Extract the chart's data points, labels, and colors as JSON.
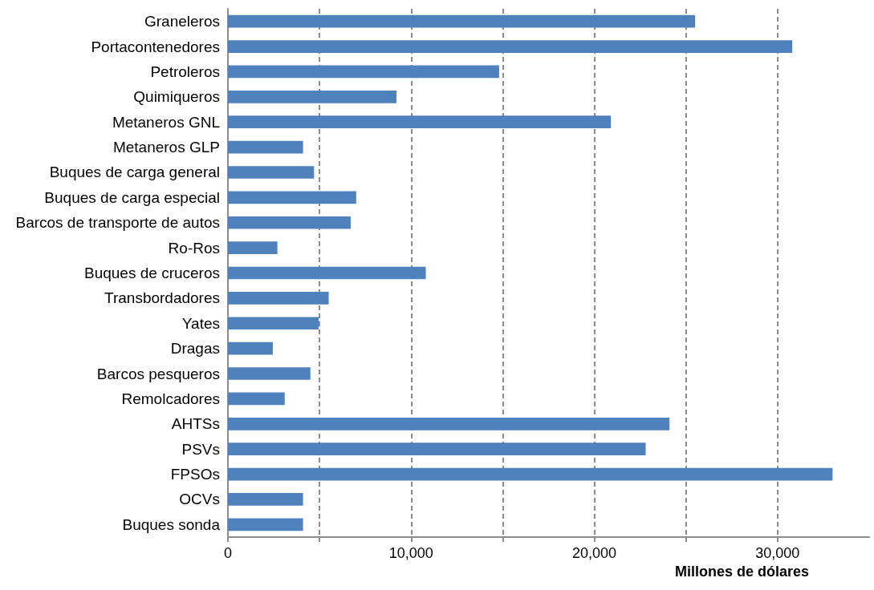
{
  "chart_data": {
    "type": "bar",
    "orientation": "horizontal",
    "xlabel": "Millones de dólares",
    "categories": [
      "Graneleros",
      "Portacontenedores",
      "Petroleros",
      "Quimiqueros",
      "Metaneros GNL",
      "Metaneros GLP",
      "Buques de carga general",
      "Buques de carga especial",
      "Barcos de transporte de autos",
      "Ro-Ros",
      "Buques de cruceros",
      "Transbordadores",
      "Yates",
      "Dragas",
      "Barcos pesqueros",
      "Remolcadores",
      "AHTSs",
      "PSVs",
      "FPSOs",
      "OCVs",
      "Buques sonda"
    ],
    "values": [
      25500,
      30800,
      14800,
      9200,
      20900,
      4100,
      4700,
      7000,
      6700,
      2700,
      10800,
      5500,
      4950,
      2450,
      4500,
      3100,
      24100,
      22800,
      33000,
      4100,
      4100
    ],
    "color": "#4f81bd",
    "xlim": [
      0,
      35000
    ],
    "xticks": [
      0,
      {
        "value": 5000,
        "label": null
      },
      {
        "value": 10000,
        "label": "10,000"
      },
      {
        "value": 15000,
        "label": null
      },
      {
        "value": 20000,
        "label": "20,000"
      },
      {
        "value": 25000,
        "label": null
      },
      {
        "value": 30000,
        "label": "30,000"
      }
    ],
    "grid": "x"
  }
}
